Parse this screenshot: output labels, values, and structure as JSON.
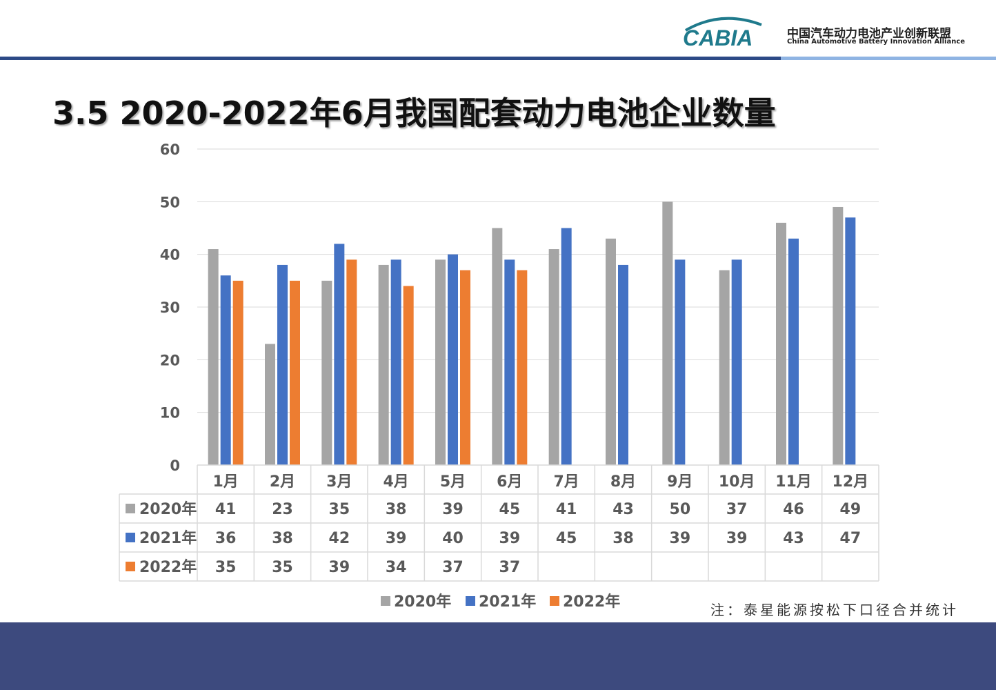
{
  "header": {
    "logo_text": "CABIA",
    "org_name_cn": "中国汽车动力电池产业创新联盟",
    "org_name_en": "China Automotive Battery Innovation Alliance"
  },
  "title": "3.5 2020-2022年6月我国配套动力电池企业数量",
  "note": "注：泰星能源按松下口径合并统计",
  "colors": {
    "2020年": "#a5a5a5",
    "2021年": "#4472c4",
    "2022年": "#ed7d31"
  },
  "chart_data": {
    "type": "bar",
    "title": "3.5 2020-2022年6月我国配套动力电池企业数量",
    "categories": [
      "1月",
      "2月",
      "3月",
      "4月",
      "5月",
      "6月",
      "7月",
      "8月",
      "9月",
      "10月",
      "11月",
      "12月"
    ],
    "series": [
      {
        "name": "2020年",
        "color": "#a5a5a5",
        "values": [
          41,
          23,
          35,
          38,
          39,
          45,
          41,
          43,
          50,
          37,
          46,
          49
        ]
      },
      {
        "name": "2021年",
        "color": "#4472c4",
        "values": [
          36,
          38,
          42,
          39,
          40,
          39,
          45,
          38,
          39,
          39,
          43,
          47
        ]
      },
      {
        "name": "2022年",
        "color": "#ed7d31",
        "values": [
          35,
          35,
          39,
          34,
          37,
          37,
          null,
          null,
          null,
          null,
          null,
          null
        ]
      }
    ],
    "ylim": [
      0,
      60
    ],
    "yticks": [
      0,
      10,
      20,
      30,
      40,
      50,
      60
    ],
    "grid": true,
    "legend": "bottom",
    "data_table": true
  }
}
